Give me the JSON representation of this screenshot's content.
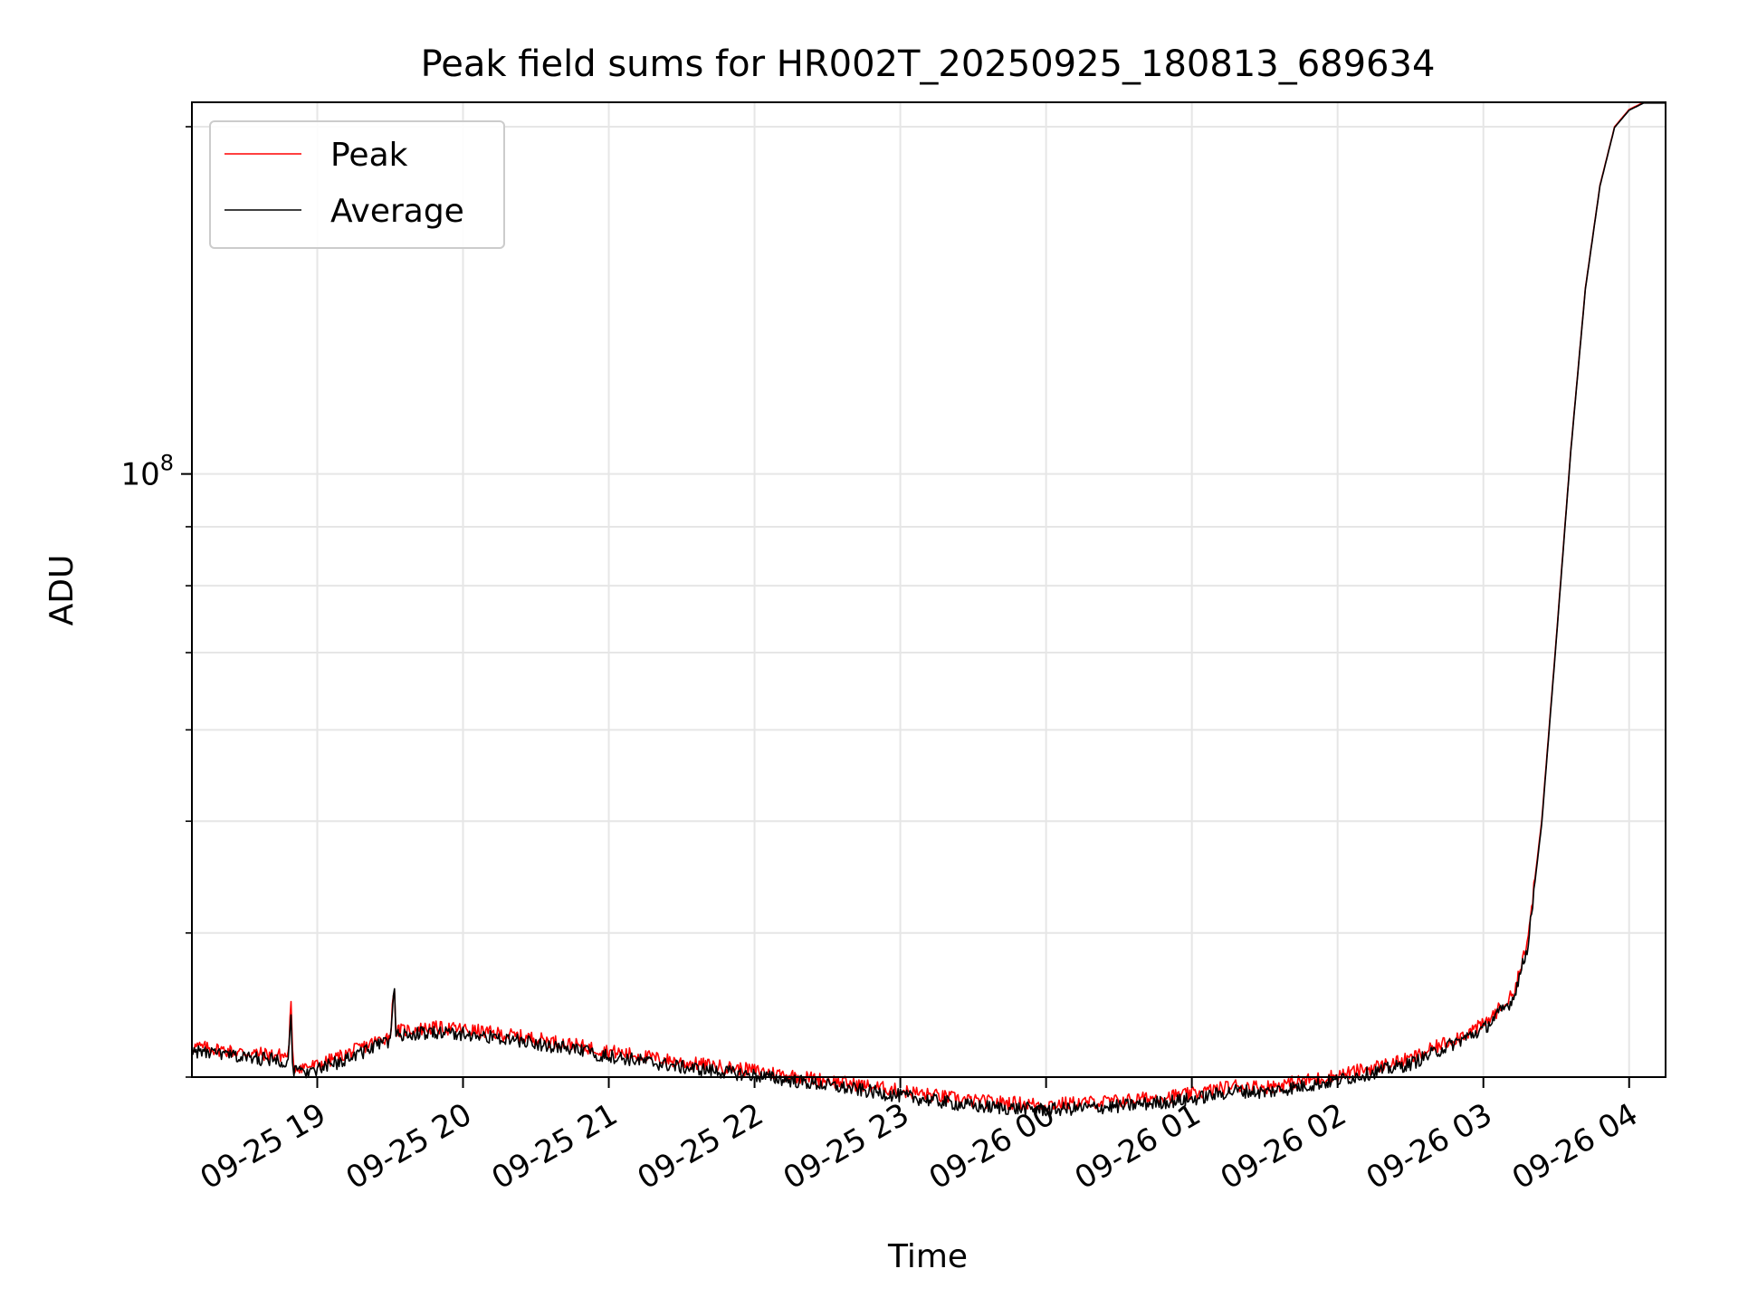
{
  "chart_data": {
    "type": "line",
    "title": "Peak field sums for HR002T_20250925_180813_689634",
    "xlabel": "Time",
    "ylabel": "ADU",
    "yscale": "log",
    "ylim": [
      30000000,
      210000000
    ],
    "xlim_hours": [
      18.14,
      28.25
    ],
    "grid": true,
    "x_tick_labels": [
      "09-25 19",
      "09-25 20",
      "09-25 21",
      "09-25 22",
      "09-25 23",
      "09-26 00",
      "09-26 01",
      "09-26 02",
      "09-26 03",
      "09-26 04"
    ],
    "x_tick_hours": [
      19,
      20,
      21,
      22,
      23,
      24,
      25,
      26,
      27,
      28
    ],
    "y_tick_label_base": "10",
    "y_tick_label_exp": "8",
    "y_major_ticks": [
      100000000
    ],
    "y_minor_ticks": [
      30000000,
      40000000,
      50000000,
      60000000,
      70000000,
      80000000,
      90000000,
      200000000
    ],
    "legend": {
      "position": "top-left",
      "entries": [
        {
          "label": "Peak",
          "color": "#ff0000"
        },
        {
          "label": "Average",
          "color": "#000000"
        }
      ]
    },
    "series": [
      {
        "name": "Peak",
        "color": "#ff0000",
        "x_hours": [
          18.14,
          18.5,
          18.8,
          18.82,
          18.83,
          18.84,
          19.0,
          19.3,
          19.5,
          19.53,
          19.54,
          19.56,
          19.8,
          20.0,
          20.5,
          21.0,
          21.5,
          22.0,
          22.5,
          23.0,
          23.5,
          24.0,
          24.5,
          25.0,
          25.3,
          25.5,
          26.0,
          26.5,
          27.0,
          27.2,
          27.3,
          27.4,
          27.5,
          27.6,
          27.7,
          27.8,
          27.9,
          28.0,
          28.1,
          28.25
        ],
        "values": [
          31900000,
          31500000,
          31300000,
          34600000,
          31400000,
          30600000,
          30700000,
          31800000,
          32600000,
          36100000,
          32800000,
          32900000,
          33100000,
          33000000,
          32400000,
          31600000,
          30900000,
          30400000,
          29800000,
          29200000,
          28600000,
          28400000,
          28600000,
          29000000,
          29500000,
          29400000,
          30100000,
          31100000,
          33300000,
          35300000,
          39000000,
          50000000,
          72000000,
          105000000,
          145000000,
          178000000,
          200000000,
          207000000,
          210000000,
          210000000
        ]
      },
      {
        "name": "Average",
        "color": "#000000",
        "x_hours": [
          18.14,
          18.5,
          18.8,
          18.82,
          18.83,
          18.84,
          19.0,
          19.3,
          19.5,
          19.53,
          19.54,
          19.56,
          19.8,
          20.0,
          20.5,
          21.0,
          21.5,
          22.0,
          22.5,
          23.0,
          23.5,
          24.0,
          24.5,
          25.0,
          25.3,
          25.5,
          26.0,
          26.5,
          27.0,
          27.2,
          27.3,
          27.4,
          27.5,
          27.6,
          27.7,
          27.8,
          27.9,
          28.0,
          28.1,
          28.25
        ],
        "values": [
          31600000,
          31200000,
          31000000,
          34300000,
          31100000,
          30300000,
          30400000,
          31500000,
          32300000,
          35800000,
          32500000,
          32600000,
          32800000,
          32700000,
          32100000,
          31300000,
          30600000,
          30100000,
          29500000,
          28900000,
          28300000,
          28100000,
          28300000,
          28700000,
          29200000,
          29100000,
          29800000,
          30800000,
          33000000,
          35000000,
          38700000,
          49700000,
          71700000,
          104700000,
          144700000,
          177700000,
          199700000,
          206700000,
          209700000,
          209700000
        ]
      }
    ]
  }
}
